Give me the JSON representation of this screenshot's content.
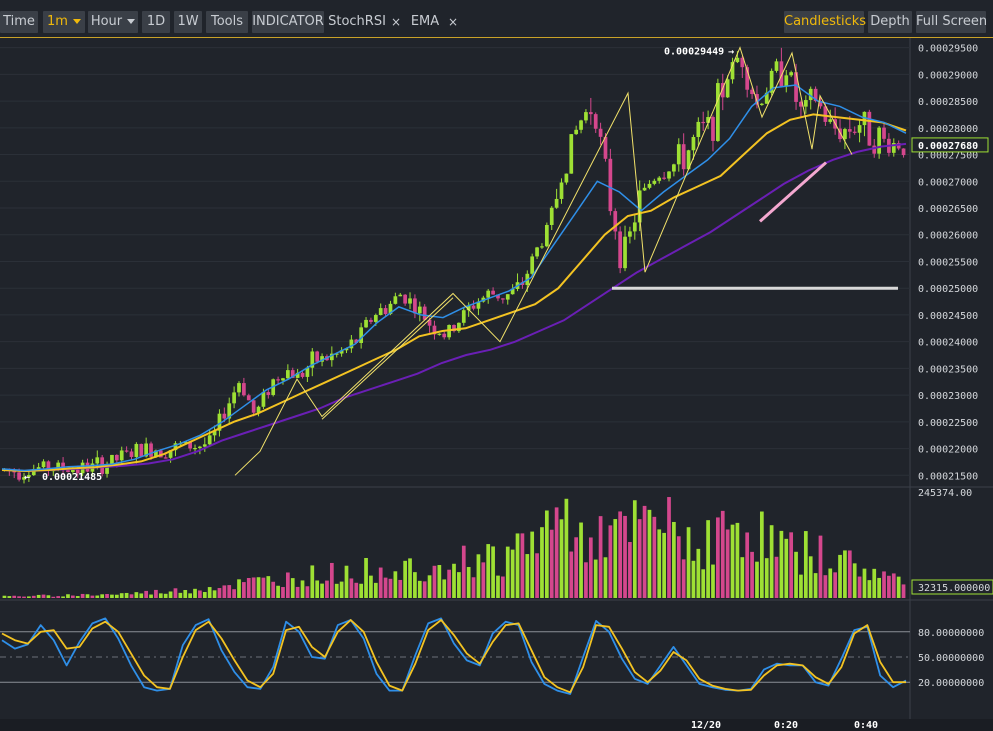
{
  "toolbar": {
    "time": "Time",
    "interval": "1m",
    "hour": "Hour",
    "d1": "1D",
    "w1": "1W",
    "tools": "Tools",
    "indicator": "INDICATOR",
    "stochrsi": "StochRSI",
    "ema": "EMA",
    "close_glyph": "×",
    "candlesticks": "Candlesticks",
    "depth": "Depth",
    "fullscreen": "Full Screen"
  },
  "colors": {
    "background": "#20242b",
    "up": "#9ee034",
    "down": "#d4478d",
    "ema_fast": "#2f8fe8",
    "ema_mid": "#f3c322",
    "ema_slow": "#6a1fb5",
    "stoch_k": "#2f8fe8",
    "stoch_d": "#f3c322",
    "trendline": "#f2e26a",
    "accent": "#f0b90b"
  },
  "chart_data": [
    {
      "type": "candlestick",
      "ylim": [
        0.000213,
        0.0002968
      ],
      "y_ticks": [
        "0.00029500",
        "0.00029000",
        "0.00028500",
        "0.00028000",
        "0.00027500",
        "0.00027000",
        "0.00026500",
        "0.00026000",
        "0.00025500",
        "0.00025000",
        "0.00024500",
        "0.00024000",
        "0.00023500",
        "0.00023000",
        "0.00022500",
        "0.00022000",
        "0.00021500"
      ],
      "y_tick_values": [
        0.000295,
        0.00029,
        0.000285,
        0.00028,
        0.000275,
        0.00027,
        0.000265,
        0.00026,
        0.000255,
        0.00025,
        0.000245,
        0.00024,
        0.000235,
        0.00023,
        0.000225,
        0.00022,
        0.000215
      ],
      "current_price": "0.00027680",
      "current_price_value": 0.0002768,
      "max_label": "0.00029449",
      "max_value": 0.00029449,
      "min_label": "0.00021485",
      "min_value": 0.00021485,
      "x_labels": [
        "12/20",
        "0:20",
        "0:40"
      ],
      "close_path": [
        0.000216,
        0.0002158,
        0.0002163,
        0.0002165,
        0.0002163,
        0.0002162,
        0.0002165,
        0.0002172,
        0.0002185,
        0.0002195,
        0.00022,
        0.0002198,
        0.0002205,
        0.0002205,
        0.000221,
        0.0002275,
        0.000233,
        0.000226,
        0.000232,
        0.0002348,
        0.0002335,
        0.0002365,
        0.000237,
        0.000238,
        0.0002405,
        0.000245,
        0.0002465,
        0.0002492,
        0.000246,
        0.000243,
        0.000241,
        0.0002445,
        0.0002475,
        0.000249,
        0.0002485,
        0.00025,
        0.0002565,
        0.000262,
        0.0002735,
        0.000281,
        0.000285,
        0.000267,
        0.000255,
        0.000266,
        0.000271,
        0.0002725,
        0.000274,
        0.0002785,
        0.000281,
        0.0002895,
        0.0002942,
        0.000284,
        0.000289,
        0.000292,
        0.0002825,
        0.0002855,
        0.00028,
        0.0002795,
        0.000281,
        0.0002785,
        0.000277,
        0.000277
      ],
      "ema_fast": [
        0.0002162,
        0.0002159,
        0.0002162,
        0.0002166,
        0.0002168,
        0.0002171,
        0.000218,
        0.0002195,
        0.0002208,
        0.0002225,
        0.000225,
        0.000228,
        0.000231,
        0.000233,
        0.0002355,
        0.0002375,
        0.0002395,
        0.0002435,
        0.0002465,
        0.000245,
        0.0002445,
        0.0002465,
        0.000248,
        0.0002495,
        0.000252,
        0.000258,
        0.000264,
        0.00027,
        0.000268,
        0.0002645,
        0.000268,
        0.000271,
        0.000274,
        0.000278,
        0.000284,
        0.0002875,
        0.000288,
        0.000285,
        0.000284,
        0.000282,
        0.000281,
        0.000279
      ],
      "ema_mid": [
        0.000216,
        0.0002158,
        0.000216,
        0.0002163,
        0.0002165,
        0.000217,
        0.0002176,
        0.000219,
        0.000221,
        0.000223,
        0.000225,
        0.0002265,
        0.0002285,
        0.0002305,
        0.0002325,
        0.0002345,
        0.0002365,
        0.0002385,
        0.000241,
        0.000242,
        0.0002425,
        0.000244,
        0.0002455,
        0.000247,
        0.00025,
        0.000255,
        0.00026,
        0.0002635,
        0.0002645,
        0.000267,
        0.000269,
        0.000271,
        0.000275,
        0.000279,
        0.0002815,
        0.0002825,
        0.000282,
        0.0002815,
        0.000281,
        0.0002795
      ],
      "ema_slow": [
        0.000216,
        0.0002158,
        0.000216,
        0.0002162,
        0.0002165,
        0.0002168,
        0.0002172,
        0.000218,
        0.0002195,
        0.0002215,
        0.000223,
        0.0002245,
        0.000226,
        0.0002275,
        0.0002295,
        0.000231,
        0.0002325,
        0.000234,
        0.000236,
        0.0002375,
        0.0002385,
        0.00024,
        0.000242,
        0.000244,
        0.000247,
        0.00025,
        0.000253,
        0.0002555,
        0.000258,
        0.0002605,
        0.0002635,
        0.0002665,
        0.0002695,
        0.000272,
        0.000274,
        0.0002755,
        0.0002765,
        0.000277
      ]
    },
    {
      "type": "bar",
      "label_top": "245374.00",
      "label_current": "32315.000000",
      "ylim": [
        0,
        245374
      ],
      "volume_profile": [
        4000,
        5000,
        6000,
        7000,
        8000,
        9000,
        11000,
        14000,
        17000,
        22000,
        28000,
        34000,
        40000,
        45000,
        52000,
        58000,
        62000,
        68000,
        72000,
        78000,
        85000,
        90000,
        95000,
        100000,
        105000,
        140000,
        180000,
        200000,
        170000,
        150000,
        165000,
        190000,
        170000,
        140000,
        150000,
        185000,
        160000,
        130000,
        120000,
        110000,
        95000,
        75000,
        55000,
        45000
      ]
    },
    {
      "type": "line",
      "indicator": "StochRSI",
      "ylim": [
        0,
        100
      ],
      "y_ticks": [
        "80.00000000",
        "50.00000000",
        "20.00000000"
      ],
      "y_tick_values": [
        80,
        50,
        20
      ],
      "k": [
        70,
        60,
        65,
        88,
        70,
        40,
        68,
        90,
        96,
        72,
        40,
        14,
        10,
        12,
        64,
        88,
        95,
        58,
        32,
        14,
        12,
        38,
        92,
        80,
        50,
        48,
        88,
        94,
        72,
        30,
        10,
        10,
        52,
        90,
        96,
        66,
        46,
        40,
        78,
        92,
        88,
        44,
        18,
        10,
        6,
        50,
        93,
        80,
        48,
        24,
        18,
        40,
        62,
        40,
        18,
        14,
        11,
        10,
        12,
        35,
        42,
        40,
        40,
        20,
        16,
        48,
        82,
        86,
        28,
        14,
        22
      ],
      "d": [
        78,
        70,
        66,
        80,
        82,
        60,
        62,
        84,
        92,
        80,
        54,
        28,
        14,
        12,
        50,
        82,
        92,
        72,
        46,
        22,
        14,
        30,
        82,
        86,
        62,
        50,
        80,
        94,
        80,
        44,
        16,
        10,
        42,
        82,
        94,
        76,
        54,
        42,
        68,
        88,
        90,
        58,
        26,
        14,
        8,
        38,
        88,
        86,
        60,
        32,
        20,
        34,
        56,
        46,
        24,
        16,
        12,
        10,
        11,
        28,
        40,
        42,
        40,
        26,
        18,
        38,
        78,
        88,
        44,
        20,
        20
      ]
    }
  ]
}
